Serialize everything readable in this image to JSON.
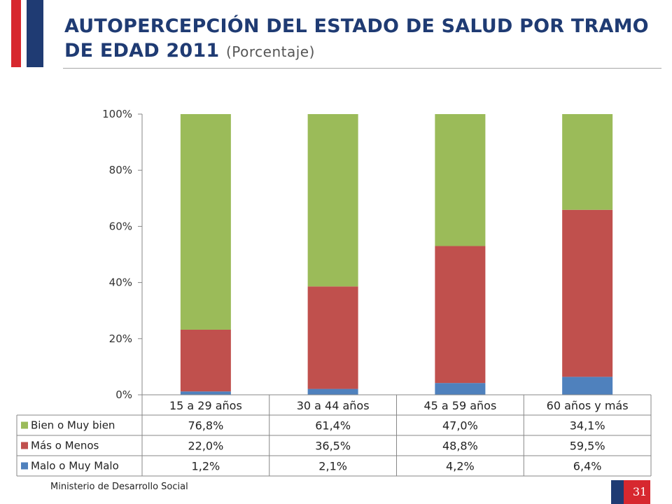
{
  "header": {
    "title": "AUTOPERCEPCIÓN DEL ESTADO DE SALUD POR TRAMO DE EDAD 2011",
    "subtitle": "(Porcentaje)"
  },
  "colors": {
    "flag_red": "#d7282f",
    "flag_blue": "#1F3B73",
    "title": "#1F3B73"
  },
  "chart_data": {
    "type": "bar",
    "stacked": true,
    "categories": [
      "15 a 29 años",
      "30 a 44 años",
      "45 a 59 años",
      "60 años y más"
    ],
    "series": [
      {
        "name": "Malo o Muy Malo",
        "color": "#4F81BD",
        "values": [
          1.2,
          2.1,
          4.2,
          6.4
        ],
        "labels": [
          "1,2%",
          "2,1%",
          "4,2%",
          "6,4%"
        ]
      },
      {
        "name": "Más o Menos",
        "color": "#C0504D",
        "values": [
          22.0,
          36.5,
          48.8,
          59.5
        ],
        "labels": [
          "22,0%",
          "36,5%",
          "48,8%",
          "59,5%"
        ]
      },
      {
        "name": "Bien o Muy bien",
        "color": "#9BBB59",
        "values": [
          76.8,
          61.4,
          47.0,
          34.1
        ],
        "labels": [
          "76,8%",
          "61,4%",
          "47,0%",
          "34,1%"
        ]
      }
    ],
    "table_order": [
      "Bien o Muy bien",
      "Más o Menos",
      "Malo o Muy Malo"
    ],
    "ylim": [
      0,
      100
    ],
    "yticks": [
      0,
      20,
      40,
      60,
      80,
      100
    ],
    "ytick_labels": [
      "0%",
      "20%",
      "40%",
      "60%",
      "80%",
      "100%"
    ],
    "data_table": true,
    "grid": false
  },
  "footer": {
    "ministry": "Ministerio de Desarrollo Social",
    "page_number": "31"
  }
}
